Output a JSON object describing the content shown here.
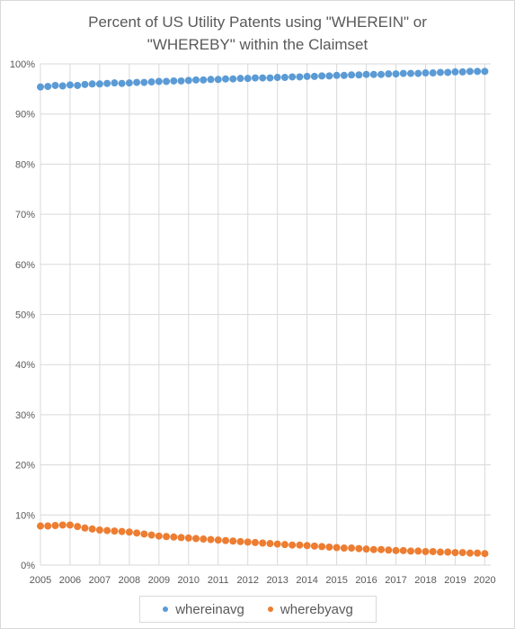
{
  "chart_data": {
    "type": "scatter",
    "title_lines": [
      "Percent of US Utility Patents using \"WHEREIN\" or",
      "\"WHEREBY\" within the Claimset"
    ],
    "xlabel": "",
    "ylabel": "",
    "xlim": [
      2005,
      2020.2
    ],
    "ylim": [
      0,
      1
    ],
    "x_ticks": [
      "2005",
      "2006",
      "2007",
      "2008",
      "2009",
      "2010",
      "2011",
      "2012",
      "2013",
      "2014",
      "2015",
      "2016",
      "2017",
      "2018",
      "2019",
      "2020"
    ],
    "y_ticks": [
      "0%",
      "10%",
      "20%",
      "30%",
      "40%",
      "50%",
      "60%",
      "70%",
      "80%",
      "90%",
      "100%"
    ],
    "grid": true,
    "legend_position": "bottom",
    "series": [
      {
        "name": "whereinavg",
        "color": "#5b9bd5",
        "x": [
          2005.0,
          2005.25,
          2005.5,
          2005.75,
          2006.0,
          2006.25,
          2006.5,
          2006.75,
          2007.0,
          2007.25,
          2007.5,
          2007.75,
          2008.0,
          2008.25,
          2008.5,
          2008.75,
          2009.0,
          2009.25,
          2009.5,
          2009.75,
          2010.0,
          2010.25,
          2010.5,
          2010.75,
          2011.0,
          2011.25,
          2011.5,
          2011.75,
          2012.0,
          2012.25,
          2012.5,
          2012.75,
          2013.0,
          2013.25,
          2013.5,
          2013.75,
          2014.0,
          2014.25,
          2014.5,
          2014.75,
          2015.0,
          2015.25,
          2015.5,
          2015.75,
          2016.0,
          2016.25,
          2016.5,
          2016.75,
          2017.0,
          2017.25,
          2017.5,
          2017.75,
          2018.0,
          2018.25,
          2018.5,
          2018.75,
          2019.0,
          2019.25,
          2019.5,
          2019.75,
          2020.0
        ],
        "y": [
          0.954,
          0.955,
          0.957,
          0.956,
          0.958,
          0.957,
          0.959,
          0.96,
          0.96,
          0.961,
          0.962,
          0.961,
          0.962,
          0.963,
          0.963,
          0.964,
          0.965,
          0.965,
          0.966,
          0.966,
          0.967,
          0.968,
          0.968,
          0.969,
          0.969,
          0.97,
          0.97,
          0.971,
          0.971,
          0.972,
          0.972,
          0.972,
          0.973,
          0.973,
          0.974,
          0.974,
          0.975,
          0.975,
          0.976,
          0.976,
          0.977,
          0.977,
          0.978,
          0.978,
          0.979,
          0.979,
          0.979,
          0.98,
          0.98,
          0.981,
          0.981,
          0.981,
          0.982,
          0.982,
          0.983,
          0.983,
          0.984,
          0.984,
          0.985,
          0.985,
          0.985
        ]
      },
      {
        "name": "wherebyavg",
        "color": "#ed7d31",
        "x": [
          2005.0,
          2005.25,
          2005.5,
          2005.75,
          2006.0,
          2006.25,
          2006.5,
          2006.75,
          2007.0,
          2007.25,
          2007.5,
          2007.75,
          2008.0,
          2008.25,
          2008.5,
          2008.75,
          2009.0,
          2009.25,
          2009.5,
          2009.75,
          2010.0,
          2010.25,
          2010.5,
          2010.75,
          2011.0,
          2011.25,
          2011.5,
          2011.75,
          2012.0,
          2012.25,
          2012.5,
          2012.75,
          2013.0,
          2013.25,
          2013.5,
          2013.75,
          2014.0,
          2014.25,
          2014.5,
          2014.75,
          2015.0,
          2015.25,
          2015.5,
          2015.75,
          2016.0,
          2016.25,
          2016.5,
          2016.75,
          2017.0,
          2017.25,
          2017.5,
          2017.75,
          2018.0,
          2018.25,
          2018.5,
          2018.75,
          2019.0,
          2019.25,
          2019.5,
          2019.75,
          2020.0
        ],
        "y": [
          0.078,
          0.078,
          0.079,
          0.08,
          0.08,
          0.077,
          0.074,
          0.072,
          0.07,
          0.069,
          0.068,
          0.067,
          0.066,
          0.064,
          0.062,
          0.06,
          0.058,
          0.057,
          0.056,
          0.055,
          0.054,
          0.053,
          0.052,
          0.051,
          0.05,
          0.049,
          0.048,
          0.047,
          0.046,
          0.045,
          0.044,
          0.043,
          0.042,
          0.041,
          0.04,
          0.04,
          0.039,
          0.038,
          0.037,
          0.036,
          0.035,
          0.034,
          0.034,
          0.033,
          0.032,
          0.031,
          0.031,
          0.03,
          0.029,
          0.029,
          0.028,
          0.028,
          0.027,
          0.027,
          0.026,
          0.026,
          0.025,
          0.025,
          0.024,
          0.024,
          0.023
        ]
      }
    ]
  }
}
